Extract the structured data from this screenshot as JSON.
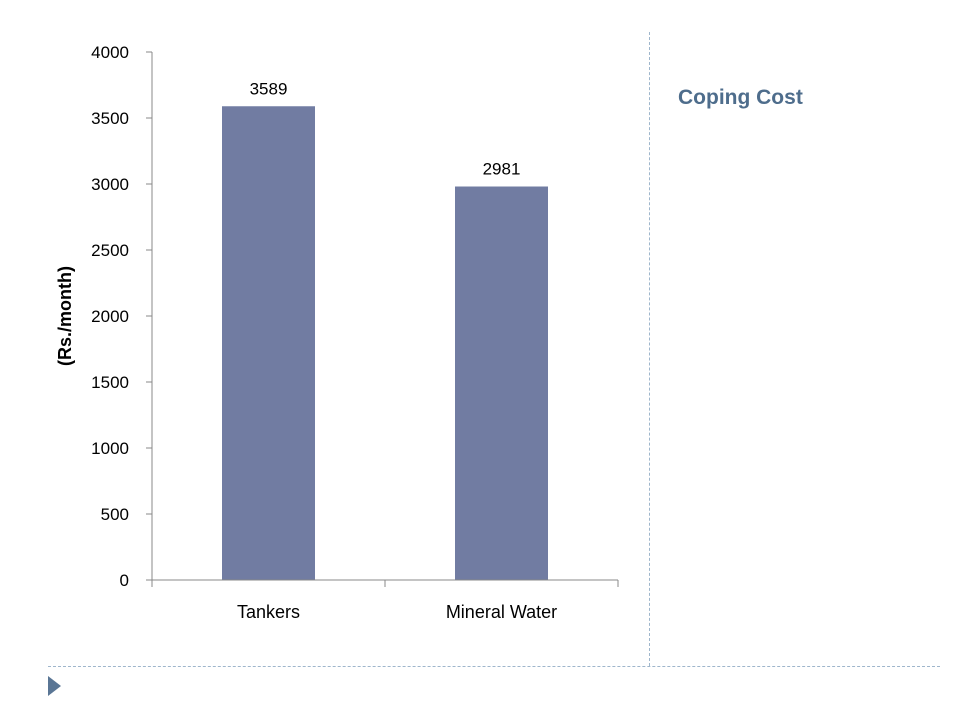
{
  "slide": {
    "title": "Coping Cost",
    "title_color": "#4e6d8c",
    "bullet_icon": "triangle-bullet-icon",
    "bullet_color": "#5a7695"
  },
  "chart_data": {
    "type": "bar",
    "categories": [
      "Tankers",
      "Mineral Water"
    ],
    "values": [
      3589,
      2981
    ],
    "data_labels": [
      "3589",
      "2981"
    ],
    "title": "",
    "xlabel": "",
    "ylabel": "(Rs./month)",
    "ylim": [
      0,
      4000
    ],
    "yticks": [
      0,
      500,
      1000,
      1500,
      2000,
      2500,
      3000,
      3500,
      4000
    ],
    "grid": false,
    "legend": "none",
    "bar_color": "#717ca2"
  }
}
